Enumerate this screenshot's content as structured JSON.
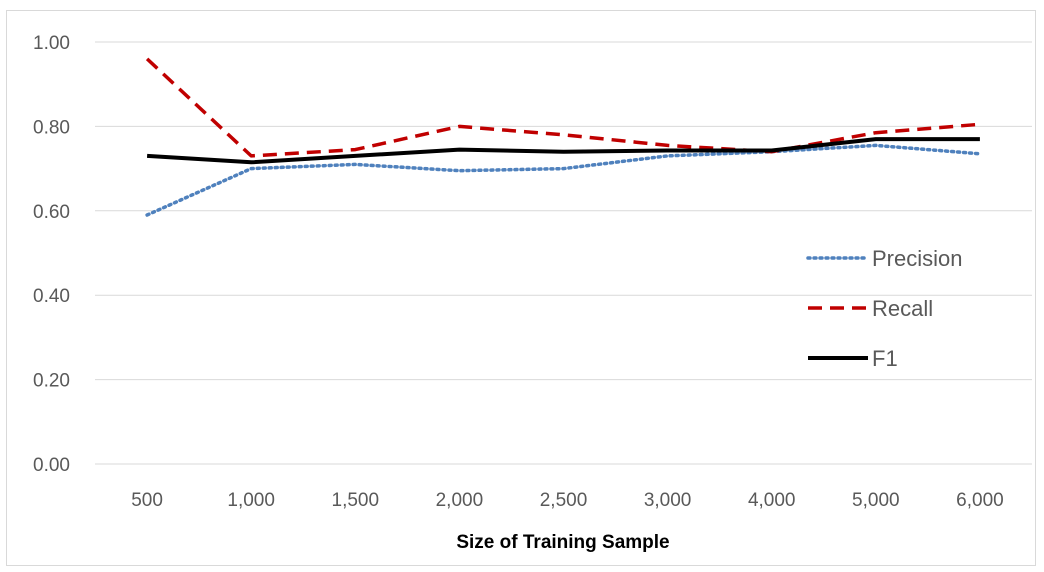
{
  "chart_data": {
    "type": "line",
    "title": "",
    "xlabel": "Size of Training Sample",
    "ylabel": "",
    "categories": [
      "500",
      "1,000",
      "1,500",
      "2,000",
      "2,500",
      "3,000",
      "4,000",
      "5,000",
      "6,000"
    ],
    "ylim": [
      0,
      1
    ],
    "yticks": [
      "0.00",
      "0.20",
      "0.40",
      "0.60",
      "0.80",
      "1.00"
    ],
    "grid": true,
    "legend_position": "right",
    "series": [
      {
        "name": "Precision",
        "values": [
          0.59,
          0.7,
          0.71,
          0.695,
          0.7,
          0.73,
          0.74,
          0.755,
          0.735
        ],
        "color": "#4f81bd",
        "style": "dotted"
      },
      {
        "name": "Recall",
        "values": [
          0.96,
          0.73,
          0.745,
          0.8,
          0.78,
          0.755,
          0.74,
          0.785,
          0.805
        ],
        "color": "#c00000",
        "style": "dashed"
      },
      {
        "name": "F1",
        "values": [
          0.73,
          0.715,
          0.73,
          0.745,
          0.74,
          0.743,
          0.743,
          0.77,
          0.77
        ],
        "color": "#000000",
        "style": "solid"
      }
    ]
  }
}
